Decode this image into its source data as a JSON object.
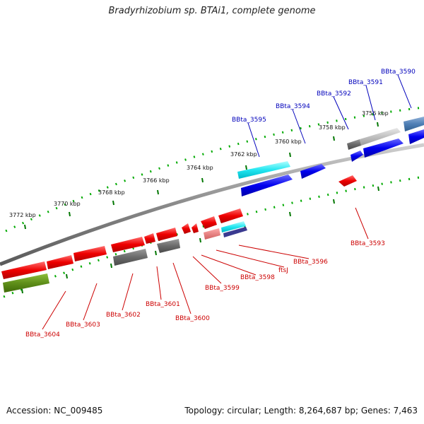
{
  "header": {
    "title": "Bradyrhizobium sp. BTAi1, complete genome"
  },
  "footer": {
    "accession": "Accession: NC_009485",
    "summary": "Topology: circular; Length: 8,264,687 bp; Genes: 7,463"
  },
  "scale": {
    "tick_labels": [
      "3772 kbp",
      "3770 kbp",
      "3768 kbp",
      "3766 kbp",
      "3764 kbp",
      "3762 kbp",
      "3760 kbp",
      "3758 kbp",
      "3756 kbp"
    ]
  },
  "forward_labels": [
    "BBta_3595",
    "BBta_3594",
    "BBta_3592",
    "BBta_3591",
    "BBta_3590"
  ],
  "reverse_labels": [
    "BBta_3593",
    "BBta_3596",
    "ftsJ",
    "BBta_3598",
    "BBta_3599",
    "BBta_3600",
    "BBta_3601",
    "BBta_3602",
    "BBta_3603",
    "BBta_3604"
  ],
  "colors": {
    "forward_gene": "#0000ee",
    "reverse_gene": "#ee0000",
    "forward_text": "#0000bb",
    "reverse_text": "#cc0000",
    "tick": "#00aa00",
    "backbone": "#8a8a8a"
  }
}
